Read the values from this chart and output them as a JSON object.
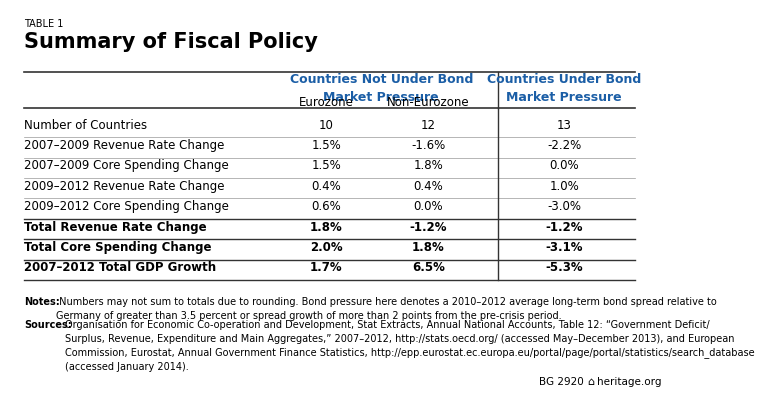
{
  "table_label": "TABLE 1",
  "title": "Summary of Fiscal Policy",
  "rows": [
    {
      "label": "Number of Countries",
      "vals": [
        "10",
        "12",
        "13"
      ],
      "bold": false
    },
    {
      "label": "2007–2009 Revenue Rate Change",
      "vals": [
        "1.5%",
        "-1.6%",
        "-2.2%"
      ],
      "bold": false
    },
    {
      "label": "2007–2009 Core Spending Change",
      "vals": [
        "1.5%",
        "1.8%",
        "0.0%"
      ],
      "bold": false
    },
    {
      "label": "2009–2012 Revenue Rate Change",
      "vals": [
        "0.4%",
        "0.4%",
        "1.0%"
      ],
      "bold": false
    },
    {
      "label": "2009–2012 Core Spending Change",
      "vals": [
        "0.6%",
        "0.0%",
        "-3.0%"
      ],
      "bold": false
    },
    {
      "label": "Total Revenue Rate Change",
      "vals": [
        "1.8%",
        "-1.2%",
        "-1.2%"
      ],
      "bold": true
    },
    {
      "label": "Total Core Spending Change",
      "vals": [
        "2.0%",
        "1.8%",
        "-3.1%"
      ],
      "bold": true
    },
    {
      "label": "2007–2012 Total GDP Growth",
      "vals": [
        "1.7%",
        "6.5%",
        "-5.3%"
      ],
      "bold": true
    }
  ],
  "notes_bold": "Notes:",
  "notes_text": " Numbers may not sum to totals due to rounding. Bond pressure here denotes a 2010–2012 average long-term bond spread relative to Germany of greater than 3.5 percent or spread growth of more than 2 points from the pre-crisis period.",
  "sources_bold": "Sources:",
  "sources_text": " Organisation for Economic Co-operation and Development, Stat Extracts, Annual National Accounts, Table 12: “Government Deficit/Surplus, Revenue, Expenditure and Main Aggregates,” 2007–2012, http://stats.oecd.org/ (accessed May–December 2013), and European Commission, Eurostat, Annual Government Finance Statistics, http://epp.eurostat.ec.europa.eu/portal/page/portal/statistics/search_database (accessed January 2014).",
  "footer_text": "BG 2920",
  "footer_logo": "heritage.org",
  "header_color": "#1B5EA6",
  "bg_color": "#FFFFFF",
  "line_color": "#999999",
  "thick_line_color": "#333333"
}
